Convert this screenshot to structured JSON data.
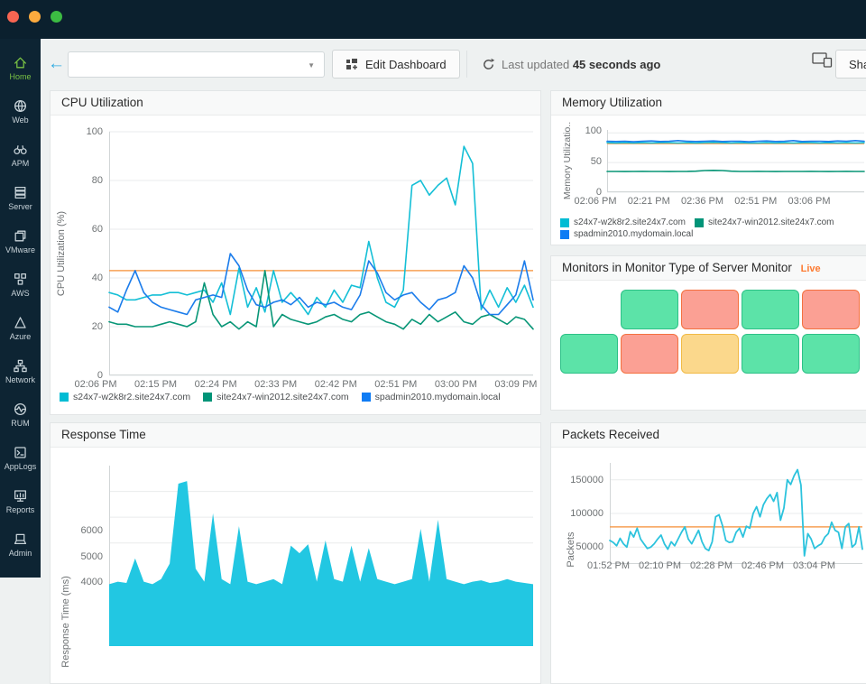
{
  "window": {
    "controls": [
      {
        "name": "close",
        "color": "#f86552"
      },
      {
        "name": "minimize",
        "color": "#fcaa3e"
      },
      {
        "name": "maximize",
        "color": "#3cbb43"
      }
    ]
  },
  "sidebar": {
    "items": [
      {
        "label": "Home",
        "icon": "home-icon",
        "active": true
      },
      {
        "label": "Web",
        "icon": "globe-icon"
      },
      {
        "label": "APM",
        "icon": "binoculars-icon"
      },
      {
        "label": "Server",
        "icon": "server-icon"
      },
      {
        "label": "VMware",
        "icon": "vmware-layers-icon"
      },
      {
        "label": "AWS",
        "icon": "aws-cubes-icon"
      },
      {
        "label": "Azure",
        "icon": "azure-triangle-icon"
      },
      {
        "label": "Network",
        "icon": "network-nodes-icon"
      },
      {
        "label": "RUM",
        "icon": "rum-globe-pulse-icon"
      },
      {
        "label": "AppLogs",
        "icon": "applogs-terminal-icon"
      },
      {
        "label": "Reports",
        "icon": "reports-board-icon"
      },
      {
        "label": "Admin",
        "icon": "admin-laptop-icon"
      }
    ]
  },
  "toolbar": {
    "dashboard_select_value": "",
    "edit_dashboard_label": "Edit Dashboard",
    "last_updated_prefix": "Last updated",
    "last_updated_value": "45 seconds ago",
    "share_label": "Share"
  },
  "panels": {
    "monitors": {
      "title": "Monitors in Monitor Type of Server Monitor",
      "badge": "Live",
      "badge_color": "#fd7b32",
      "status_colors": {
        "up": {
          "fill": "#5ce3a8",
          "border": "#2dc187"
        },
        "down": {
          "fill": "#fba094",
          "border": "#f4713f"
        },
        "trouble": {
          "fill": "#fbd88c",
          "border": "#f1ba45"
        }
      },
      "rows": [
        [
          "",
          "up",
          "down",
          "up",
          "down"
        ],
        [
          "up",
          "down",
          "trouble",
          "up",
          "up"
        ]
      ]
    }
  },
  "chart_data": [
    {
      "id": "cpu",
      "type": "line",
      "title": "CPU Utilization",
      "ylabel": "CPU Utilization (%)",
      "ylim": [
        0,
        100
      ],
      "yticks": [
        100,
        80,
        60,
        40,
        20,
        0
      ],
      "ytick_labels": [
        "100",
        "80",
        "60",
        "40",
        "20",
        "0"
      ],
      "xticks": [
        "02:06 PM",
        "02:15 PM",
        "02:24 PM",
        "02:33 PM",
        "02:42 PM",
        "02:51 PM",
        "03:00 PM",
        "03:09 PM"
      ],
      "grid": true,
      "axis": true,
      "legend_position": "bottom",
      "threshold": 43,
      "threshold_color": "#f7a054",
      "series": [
        {
          "name": "s24x7-w2k8r2.site24x7.com",
          "color": "#14bfd6",
          "values": [
            34,
            33,
            31,
            31,
            32,
            33,
            33,
            34,
            34,
            33,
            34,
            35,
            30,
            38,
            25,
            44,
            28,
            36,
            26,
            43,
            30,
            34,
            30,
            25,
            32,
            28,
            35,
            30,
            37,
            36,
            55,
            40,
            30,
            28,
            35,
            78,
            80,
            74,
            78,
            81,
            70,
            94,
            87,
            27,
            35,
            28,
            36,
            30,
            37,
            28
          ]
        },
        {
          "name": "site24x7-win2012.site24x7.com",
          "color": "#089677",
          "values": [
            22,
            21,
            21,
            20,
            20,
            20,
            21,
            22,
            21,
            20,
            22,
            38,
            25,
            20,
            22,
            19,
            22,
            20,
            43,
            20,
            25,
            23,
            22,
            21,
            22,
            24,
            25,
            23,
            22,
            25,
            26,
            24,
            22,
            21,
            19,
            23,
            21,
            25,
            22,
            24,
            26,
            22,
            21,
            24,
            25,
            23,
            21,
            24,
            23,
            19
          ]
        },
        {
          "name": "spadmin2010.mydomain.local",
          "color": "#1b7ceb",
          "values": [
            28,
            26,
            35,
            43,
            34,
            30,
            28,
            27,
            26,
            25,
            31,
            32,
            33,
            32,
            50,
            45,
            35,
            29,
            28,
            30,
            31,
            29,
            32,
            28,
            30,
            29,
            30,
            28,
            27,
            33,
            47,
            42,
            34,
            31,
            33,
            34,
            30,
            27,
            31,
            32,
            34,
            45,
            40,
            29,
            25,
            25,
            29,
            33,
            47,
            31
          ]
        }
      ],
      "legend": [
        {
          "label": "s24x7-w2k8r2.site24x7.com",
          "color": "#00bcd4"
        },
        {
          "label": "site24x7-win2012.site24x7.com",
          "color": "#009478"
        },
        {
          "label": "spadmin2010.mydomain.local",
          "color": "#0f7cf4"
        }
      ]
    },
    {
      "id": "memory",
      "type": "line",
      "title": "Memory Utilization",
      "ylabel": "Memory Utilizatio..",
      "ylim": [
        0,
        105
      ],
      "yticks": [
        100,
        50,
        0
      ],
      "ytick_labels": [
        "100",
        "50",
        "0"
      ],
      "xticks": [
        "02:06 PM",
        "02:21 PM",
        "02:36 PM",
        "02:51 PM",
        "03:06 PM"
      ],
      "grid": true,
      "axis": true,
      "legend_position": "bottom",
      "threshold": 82,
      "threshold_color": "#f7a054",
      "series": [
        {
          "name": "s24x7-w2k8r2.site24x7.com",
          "color": "#14bfd6",
          "values": [
            83.5,
            83,
            83.5,
            83,
            83.5,
            83,
            83.5,
            83.5,
            83,
            83.5,
            83,
            83.5,
            84,
            83.5,
            83,
            83.5,
            83,
            83,
            83.5,
            83,
            83.5,
            83,
            83.5,
            83.5,
            83,
            83.5,
            83,
            83.5,
            83,
            83.5
          ]
        },
        {
          "name": "site24x7-win2012.site24x7.com",
          "color": "#089677",
          "values": [
            35,
            35,
            34.8,
            35,
            35.2,
            35,
            35,
            34.8,
            35,
            35,
            35.5,
            36.5,
            36.8,
            36.5,
            35.5,
            35,
            35,
            35.2,
            35,
            34.8,
            35,
            35,
            35,
            35.2,
            35,
            34.8,
            35,
            35.2,
            35,
            35
          ]
        },
        {
          "name": "spadmin2010.mydomain.local",
          "color": "#1b7ceb",
          "values": [
            86,
            85.5,
            86,
            85,
            86,
            86.5,
            85.5,
            86,
            87,
            86,
            85.5,
            86,
            86.5,
            85.5,
            86,
            86,
            85,
            86,
            86.5,
            85.5,
            86,
            87,
            85.5,
            86,
            86,
            85.5,
            86.5,
            86,
            87,
            86
          ]
        }
      ],
      "legend": [
        {
          "label": "s24x7-w2k8r2.site24x7.com",
          "color": "#00bcd4"
        },
        {
          "label": "site24x7-win2012.site24x7.com",
          "color": "#009478"
        },
        {
          "label": "spadmin2010.mydomain.local",
          "color": "#0f7cf4"
        }
      ]
    },
    {
      "id": "response",
      "type": "area",
      "title": "Response Time",
      "ylabel": "Response Time (ms)",
      "ylim": [
        0,
        7000
      ],
      "yticks": [
        6000,
        5000,
        4000
      ],
      "ytick_labels": [
        "6000",
        "5000",
        "4000"
      ],
      "xticks": [],
      "grid": true,
      "axis": true,
      "series": [
        {
          "name": "Response Time",
          "color": "#22c7e2",
          "values": [
            2400,
            2500,
            2450,
            3400,
            2500,
            2400,
            2600,
            3200,
            6300,
            6400,
            3000,
            2500,
            5150,
            2600,
            2400,
            4650,
            2500,
            2400,
            2500,
            2600,
            2400,
            3900,
            3600,
            3950,
            2500,
            4100,
            2600,
            2500,
            3900,
            2500,
            3800,
            2600,
            2500,
            2400,
            2500,
            2600,
            4550,
            2500,
            4900,
            2600,
            2500,
            2400,
            2500,
            2550,
            2450,
            2500,
            2600,
            2500,
            2450,
            2400
          ]
        }
      ]
    },
    {
      "id": "packets",
      "type": "line",
      "title": "Packets Received",
      "ylabel": "Packets",
      "ylim": [
        25000,
        175000
      ],
      "yticks": [
        150000,
        100000,
        50000
      ],
      "ytick_labels": [
        "150000",
        "100000",
        "50000"
      ],
      "xticks": [
        "01:52 PM",
        "02:10 PM",
        "02:28 PM",
        "02:46 PM",
        "03:04 PM"
      ],
      "grid": true,
      "axis": true,
      "threshold": 80000,
      "threshold_color": "#f7a054",
      "series": [
        {
          "name": "Packets Received",
          "color": "#2cc3dd",
          "width": 1.8,
          "values": [
            60000,
            57000,
            52000,
            63000,
            55000,
            50000,
            73000,
            65000,
            78000,
            62000,
            55000,
            48000,
            50000,
            55000,
            62000,
            68000,
            55000,
            47000,
            58000,
            52000,
            62000,
            72000,
            80000,
            62000,
            55000,
            65000,
            75000,
            58000,
            48000,
            45000,
            58000,
            95000,
            98000,
            82000,
            60000,
            57000,
            58000,
            72000,
            78000,
            65000,
            81000,
            78000,
            100000,
            110000,
            95000,
            113000,
            122000,
            128000,
            118000,
            131000,
            90000,
            108000,
            150000,
            143000,
            156000,
            165000,
            142000,
            37000,
            70000,
            62000,
            48000,
            52000,
            55000,
            65000,
            70000,
            87000,
            75000,
            72000,
            48000,
            80000,
            85000,
            50000,
            55000,
            80000,
            47000
          ]
        }
      ]
    }
  ]
}
